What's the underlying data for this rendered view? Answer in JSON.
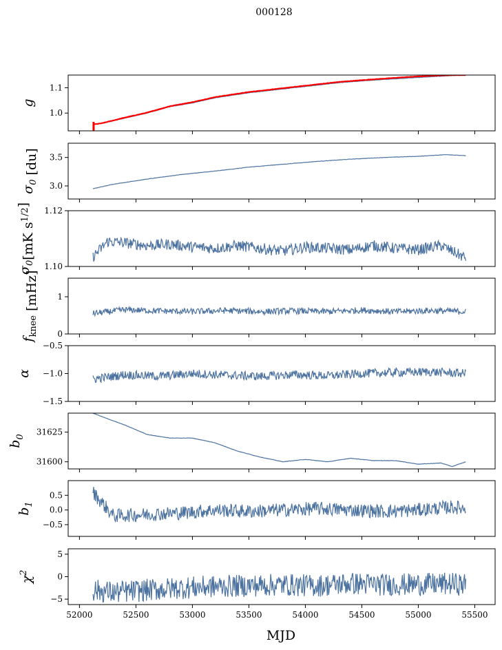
{
  "figure": {
    "title": "000128",
    "xlabel": "MJD"
  },
  "chart_data": [
    {
      "type": "line",
      "panel": "g",
      "ylabel_latex": "g",
      "xlim": [
        51900,
        55680
      ],
      "ylim": [
        0.93,
        1.15
      ],
      "yticks": [
        "1.0",
        "1.1"
      ],
      "ytick_values": [
        1.0,
        1.1
      ],
      "xticks": [
        52000,
        52500,
        53000,
        53500,
        54000,
        54500,
        55000,
        55500
      ],
      "series": [
        {
          "color": "#4c72a0",
          "x": [
            52120,
            52200,
            52400,
            52600,
            52800,
            53000,
            53200,
            53500,
            53800,
            54000,
            54300,
            54600,
            54900,
            55100,
            55300,
            55420
          ],
          "y": [
            0.955,
            0.96,
            0.98,
            1.0,
            1.025,
            1.04,
            1.06,
            1.08,
            1.095,
            1.105,
            1.12,
            1.13,
            1.138,
            1.143,
            1.148,
            1.15
          ]
        },
        {
          "color": "#ff0000",
          "x": [
            52120,
            52200,
            52400,
            52600,
            52800,
            53000,
            53200,
            53500,
            53800,
            54000,
            54300,
            54600,
            54900,
            55100,
            55300,
            55420
          ],
          "y": [
            0.955,
            0.96,
            0.982,
            1.002,
            1.027,
            1.043,
            1.063,
            1.083,
            1.098,
            1.108,
            1.123,
            1.133,
            1.142,
            1.147,
            1.15,
            1.15
          ]
        }
      ]
    },
    {
      "type": "line",
      "panel": "sigma0_du",
      "ylabel_latex": "σ0 [du]",
      "xlim": [
        51900,
        55680
      ],
      "ylim": [
        2.77,
        3.75
      ],
      "yticks": [
        "3.0",
        "3.5"
      ],
      "ytick_values": [
        3.0,
        3.5
      ],
      "series": [
        {
          "color": "#4c72a0",
          "x": [
            52120,
            52300,
            52600,
            52900,
            53200,
            53500,
            53800,
            54100,
            54400,
            54700,
            55000,
            55250,
            55420
          ],
          "y": [
            2.95,
            3.03,
            3.12,
            3.2,
            3.26,
            3.33,
            3.38,
            3.43,
            3.47,
            3.5,
            3.52,
            3.55,
            3.53
          ]
        }
      ]
    },
    {
      "type": "line",
      "panel": "sigma0_mK",
      "ylabel_latex": "σ0[mK s^1/2]",
      "xlim": [
        51900,
        55680
      ],
      "ylim": [
        1.1,
        1.12
      ],
      "yticks": [
        "1.10",
        "1.12"
      ],
      "ytick_values": [
        1.1,
        1.12
      ],
      "series": [
        {
          "color": "#4c72a0",
          "x": [
            52120,
            52250,
            52400,
            52600,
            52800,
            53000,
            53200,
            53400,
            53600,
            53800,
            54000,
            54200,
            54400,
            54600,
            54800,
            55000,
            55200,
            55420
          ],
          "y": [
            1.1035,
            1.109,
            1.1085,
            1.1075,
            1.108,
            1.107,
            1.1065,
            1.1075,
            1.1065,
            1.1055,
            1.107,
            1.1065,
            1.106,
            1.1075,
            1.1065,
            1.106,
            1.1075,
            1.103
          ]
        }
      ]
    },
    {
      "type": "line",
      "panel": "fknee",
      "ylabel_latex": "f_knee [mHz]",
      "xlim": [
        51900,
        55680
      ],
      "ylim": [
        0,
        1.5
      ],
      "yticks": [
        "0",
        "1"
      ],
      "ytick_values": [
        0,
        1
      ],
      "series": [
        {
          "color": "#4c72a0",
          "x": [
            52120,
            52400,
            52700,
            53000,
            53300,
            53600,
            53900,
            54200,
            54500,
            54800,
            55100,
            55420
          ],
          "y": [
            0.55,
            0.65,
            0.62,
            0.6,
            0.63,
            0.6,
            0.62,
            0.6,
            0.64,
            0.6,
            0.63,
            0.6
          ]
        }
      ]
    },
    {
      "type": "line",
      "panel": "alpha",
      "ylabel_latex": "α",
      "xlim": [
        51900,
        55680
      ],
      "ylim": [
        -1.5,
        -0.5
      ],
      "yticks": [
        "−1.5",
        "−1.0",
        "−0.5"
      ],
      "ytick_values": [
        -1.5,
        -1.0,
        -0.5
      ],
      "series": [
        {
          "color": "#4c72a0",
          "x": [
            52120,
            52400,
            52700,
            53000,
            53300,
            53600,
            53900,
            54200,
            54500,
            54800,
            55100,
            55420
          ],
          "y": [
            -1.1,
            -1.02,
            -1.05,
            -1.0,
            -1.03,
            -1.05,
            -1.02,
            -1.04,
            -1.0,
            -0.98,
            -0.97,
            -1.0
          ]
        }
      ]
    },
    {
      "type": "line",
      "panel": "b0",
      "ylabel_latex": "b0",
      "xlim": [
        51900,
        55680
      ],
      "ylim": [
        31594,
        31641
      ],
      "yticks": [
        "31600",
        "31625"
      ],
      "ytick_values": [
        31600,
        31625
      ],
      "series": [
        {
          "color": "#4c72a0",
          "x": [
            52120,
            52200,
            52400,
            52600,
            52800,
            53000,
            53200,
            53400,
            53600,
            53800,
            54000,
            54200,
            54400,
            54600,
            54800,
            55000,
            55200,
            55300,
            55420
          ],
          "y": [
            31641,
            31638,
            31631,
            31623,
            31620,
            31620,
            31616,
            31609,
            31604,
            31600,
            31602,
            31600,
            31603,
            31601,
            31601,
            31598,
            31599,
            31596,
            31600
          ]
        }
      ]
    },
    {
      "type": "line",
      "panel": "b1",
      "ylabel_latex": "b1",
      "xlim": [
        51900,
        55680
      ],
      "ylim": [
        -0.9,
        1.0
      ],
      "yticks": [
        "−0.5",
        "0.0",
        "0.5"
      ],
      "ytick_values": [
        -0.5,
        0.0,
        0.5
      ],
      "series": [
        {
          "color": "#4c72a0",
          "x": [
            52120,
            52300,
            52600,
            52900,
            53200,
            53500,
            53800,
            54100,
            54400,
            54700,
            55000,
            55300,
            55420
          ],
          "y": [
            0.6,
            -0.2,
            -0.15,
            -0.1,
            0.0,
            -0.05,
            0.0,
            0.05,
            0.0,
            -0.05,
            0.0,
            0.1,
            0.05
          ]
        }
      ]
    },
    {
      "type": "line",
      "panel": "chi2",
      "ylabel_latex": "χ^2",
      "xlim": [
        51900,
        55680
      ],
      "ylim": [
        -6.2,
        6.2
      ],
      "yticks": [
        "−5",
        "0",
        "5"
      ],
      "ytick_values": [
        -5,
        0,
        5
      ],
      "series": [
        {
          "color": "#4c72a0",
          "x": [
            52120,
            52300,
            52600,
            52900,
            53200,
            53500,
            53800,
            54100,
            54400,
            54700,
            55000,
            55300,
            55420
          ],
          "y": [
            -3.0,
            -3.5,
            -3.0,
            -2.5,
            -2.2,
            -2.0,
            -1.8,
            -2.0,
            -1.5,
            -1.8,
            -1.7,
            -1.6,
            -1.8
          ]
        }
      ]
    }
  ]
}
